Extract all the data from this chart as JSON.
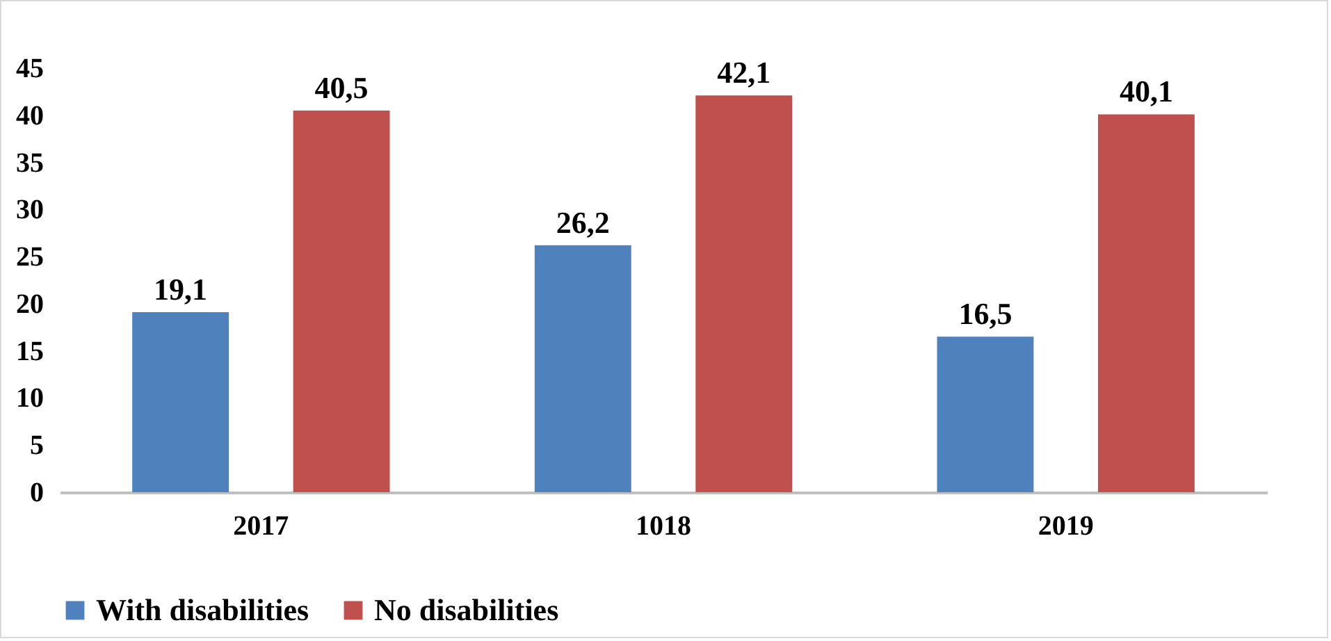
{
  "chart_data": {
    "type": "bar",
    "categories": [
      "2017",
      "1018",
      "2019"
    ],
    "series": [
      {
        "name": "With disabilities",
        "color": "#4f81bd",
        "values": [
          19.1,
          26.2,
          16.5
        ],
        "value_labels": [
          "19,1",
          "26,2",
          "16,5"
        ]
      },
      {
        "name": "No disabilities",
        "color": "#c0504d",
        "values": [
          40.5,
          42.1,
          40.1
        ],
        "value_labels": [
          "40,5",
          "42,1",
          "40,1"
        ]
      }
    ],
    "ylim": [
      0,
      45
    ],
    "yticks": [
      0,
      5,
      10,
      15,
      20,
      25,
      30,
      35,
      40,
      45
    ],
    "grid": false,
    "legend": "bottom"
  }
}
